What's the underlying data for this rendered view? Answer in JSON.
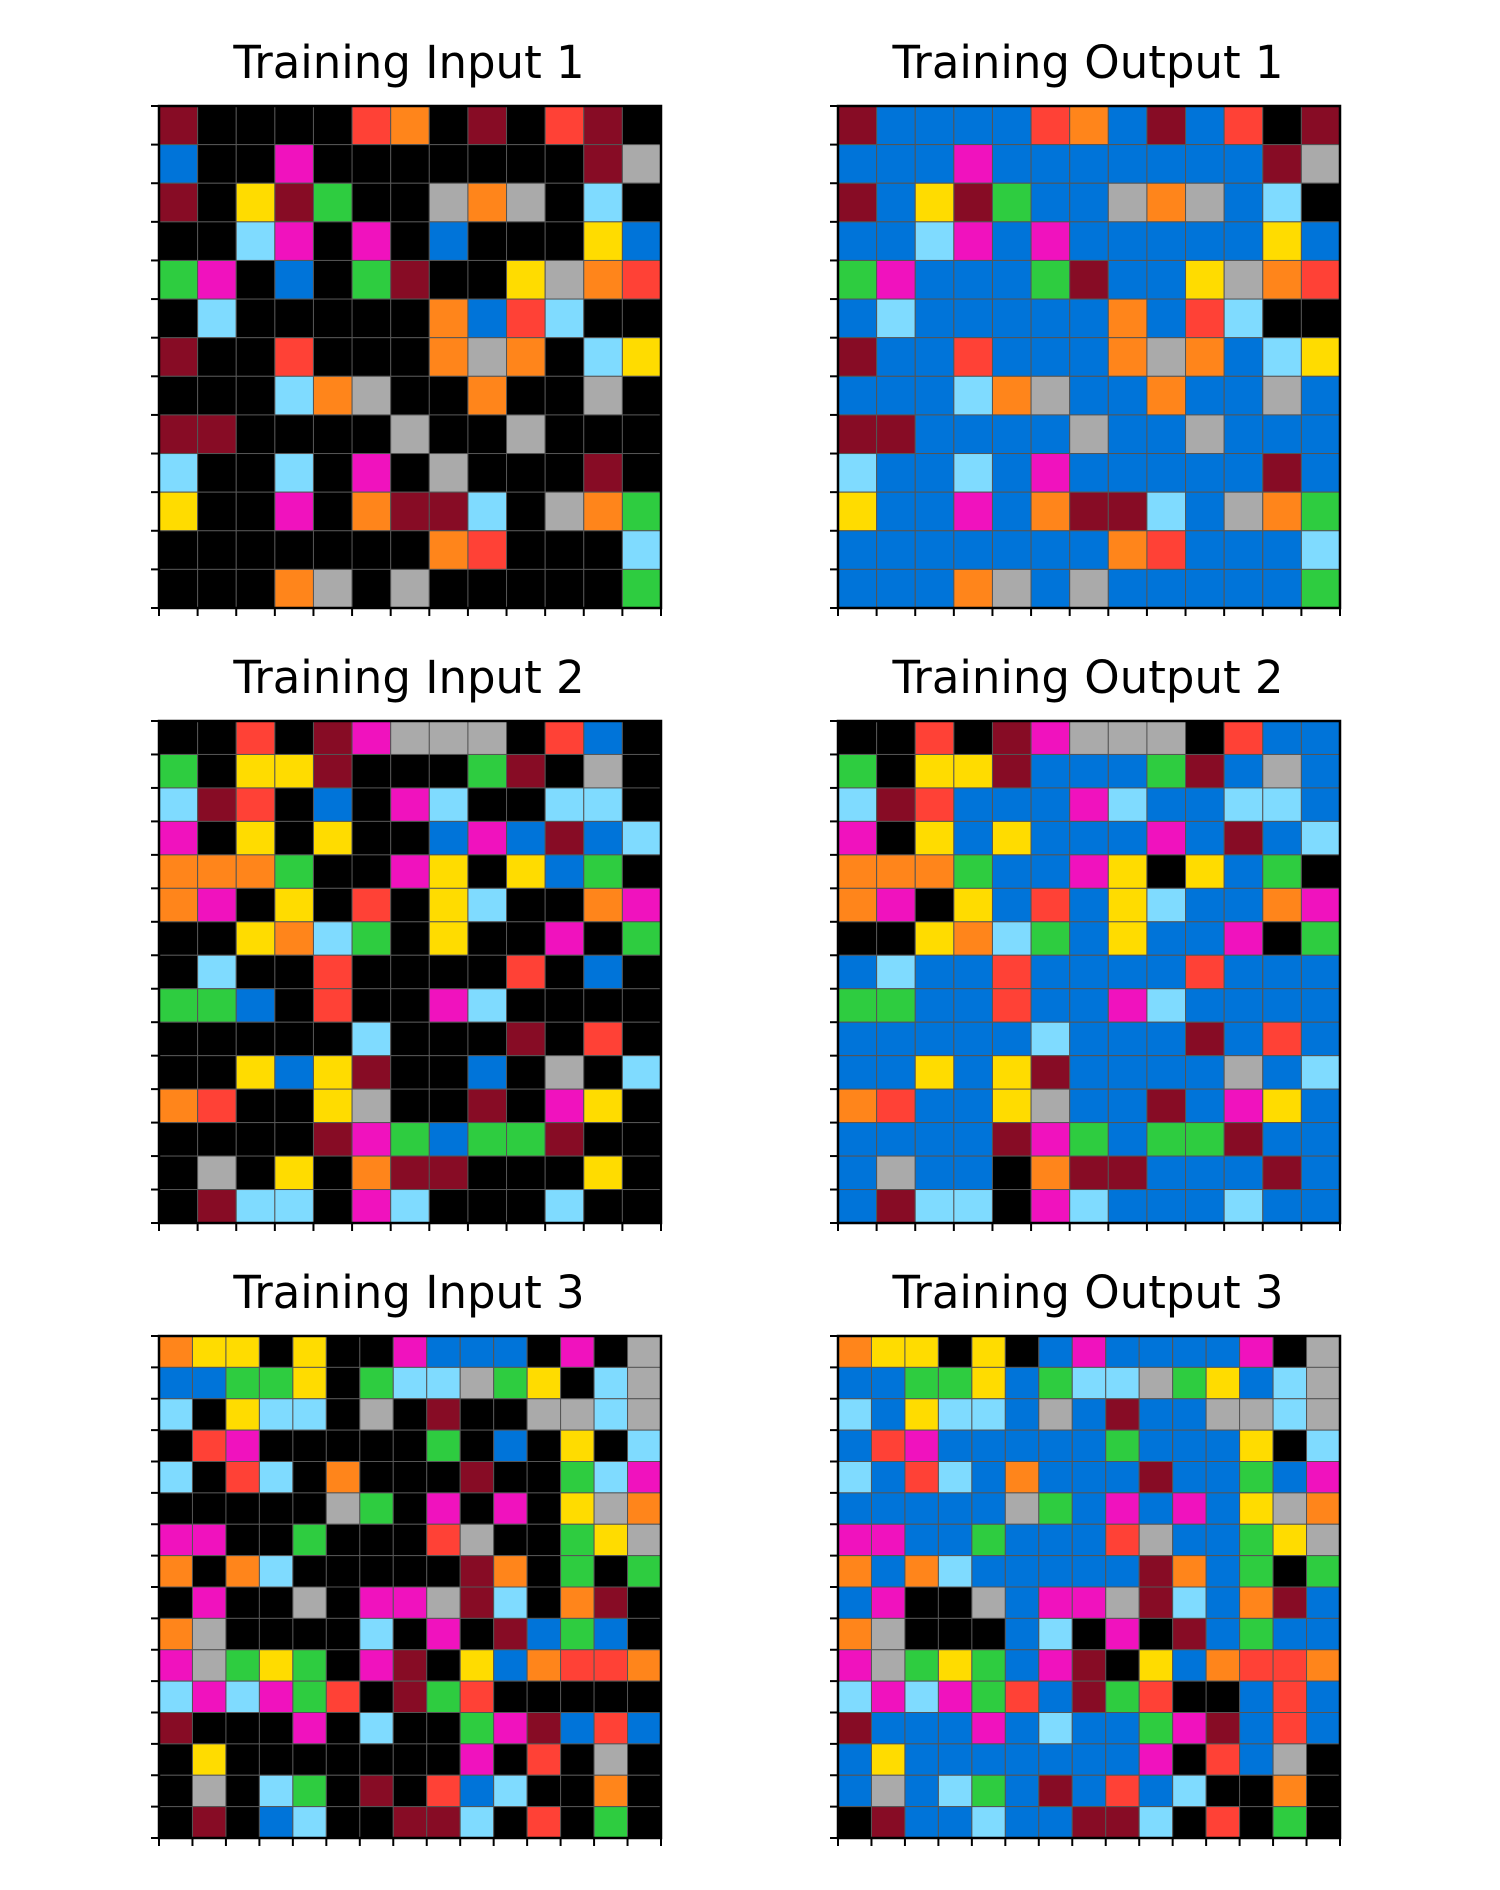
{
  "palette": {
    "0": "#000000",
    "1": "#0074D9",
    "2": "#FF4136",
    "3": "#2ECC40",
    "4": "#FFDC00",
    "5": "#AAAAAA",
    "6": "#F012BE",
    "7": "#FF851B",
    "8": "#7FDBFF",
    "9": "#870C25"
  },
  "grid_line_color": "#555555",
  "panels": [
    {
      "title": "Training Input 1",
      "grid": [
        "9000027090290",
        "1006000000095",
        "9049300575080",
        "0086060100041",
        "3601039004572",
        "0800000712800",
        "9002000757084",
        "0008750070050",
        "9900005005000",
        "8008060500090",
        "4006079980573",
        "0000000720008",
        "0007505000003"
      ]
    },
    {
      "title": "Training Output 1",
      "grid": [
        "9111127191209",
        "1116111111195",
        "9149311575180",
        "1186161111141",
        "3611139114572",
        "1811111712800",
        "9112111757184",
        "1118751171151",
        "9911115115111",
        "8118161111191",
        "4116179981573",
        "1111111721118",
        "1117515111113"
      ]
    },
    {
      "title": "Training Input 2",
      "grid": [
        "0020965550210",
        "3044900039050",
        "8920106800880",
        "6040400161918",
        "7773006404130",
        "7604020480076",
        "0047830400603",
        "0800200002010",
        "3310200680000",
        "0000080009020",
        "0041490010508",
        "7200450090640",
        "0000963133900",
        "0504079900040",
        "0988068000800"
      ]
    },
    {
      "title": "Training Output 2",
      "grid": [
        "0020965550211",
        "3044911139151",
        "8921116811881",
        "6041411161918",
        "7773116404130",
        "7604121481176",
        "0047831411603",
        "1811211112111",
        "3311211681111",
        "1111181119121",
        "1141491111518",
        "7211451191641",
        "1111963133911",
        "1511079911191",
        "1988068111811"
      ]
    },
    {
      "title": "Training Input 3",
      "grid": [
        "744040061110605",
        "113340388534085",
        "804880509005585",
        "026000003010408",
        "802807000900386",
        "000005306060457",
        "660030002500345",
        "707800000970303",
        "060050665980790",
        "750000806091310",
        "653430690417227",
        "868632093200000",
        "900060800369121",
        "040000000602050",
        "050830902180070",
        "090180099802030"
      ]
    },
    {
      "title": "Training Output 3",
      "grid": [
        "744040161111605",
        "113341388534185",
        "814881519115585",
        "126111113111408",
        "812817111911316",
        "111115316161457",
        "661131112511345",
        "717811111971303",
        "160051665981791",
        "750001806091311",
        "653431690417227",
        "868632193200121",
        "911161811369121",
        "141111111602150",
        "151831912180070",
        "091181199802030"
      ]
    }
  ]
}
